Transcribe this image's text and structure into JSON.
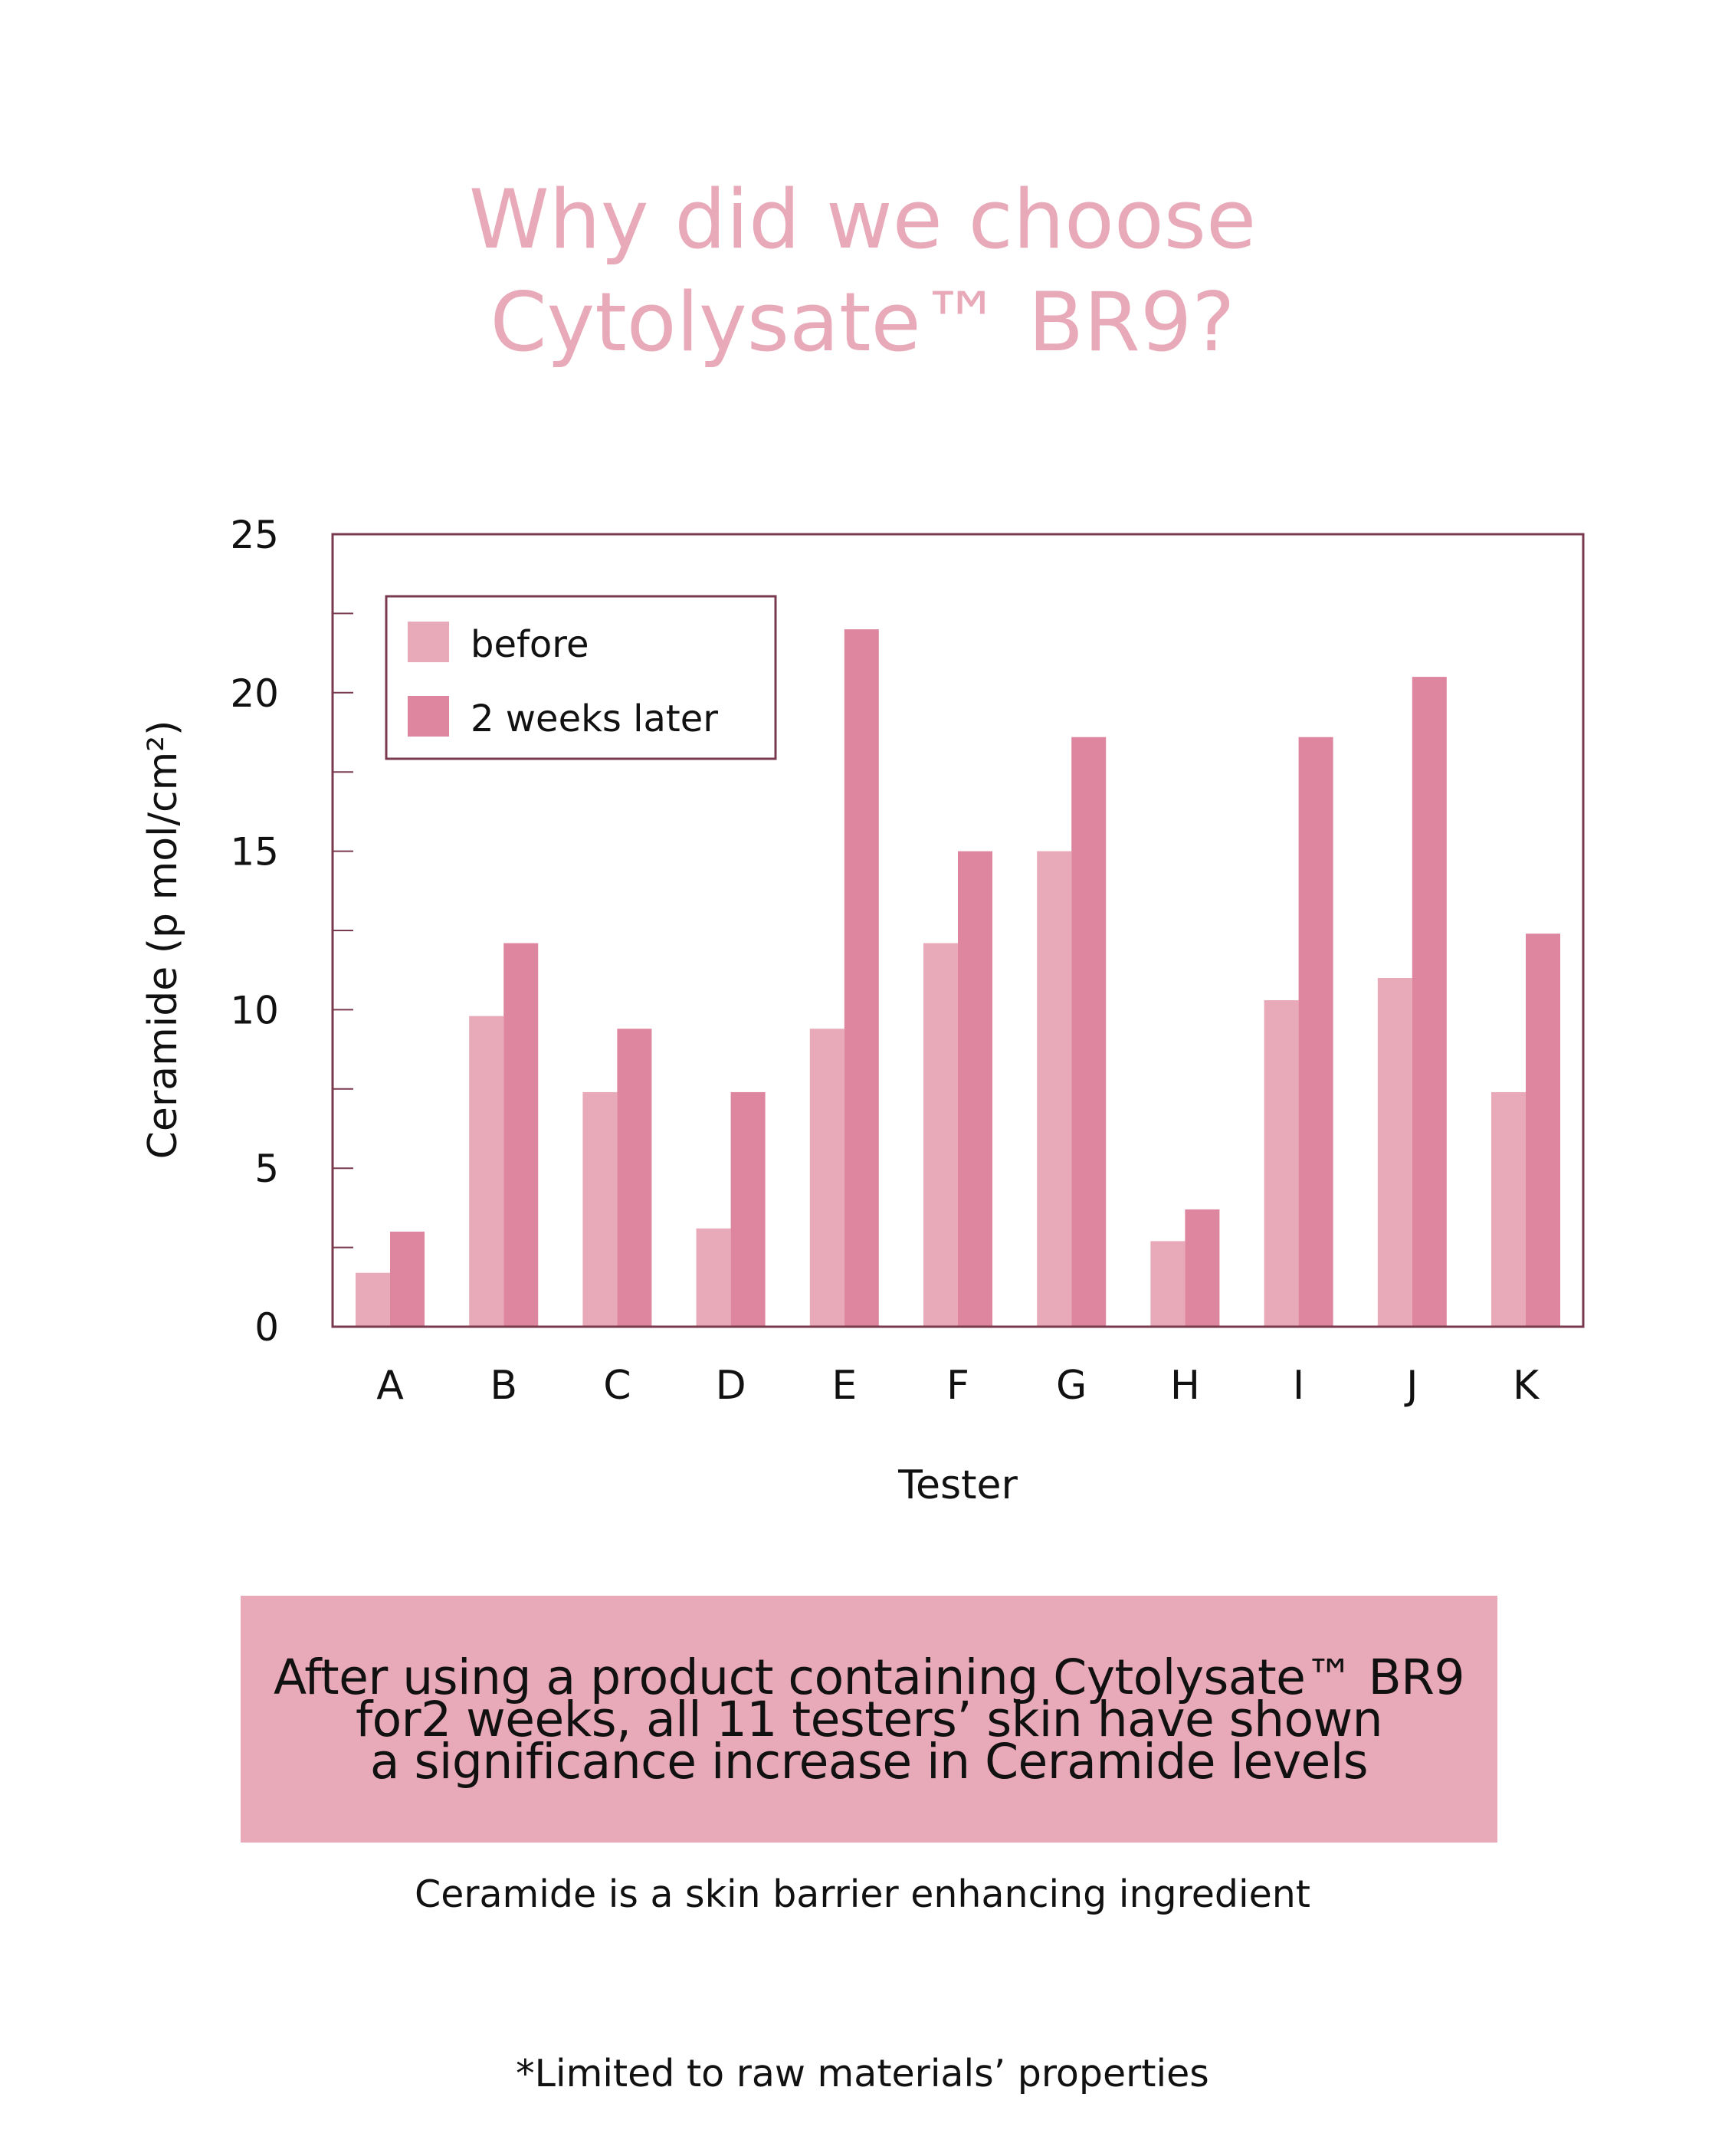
{
  "title": {
    "line1": "Why did we choose",
    "line2": "Cytolysate™ BR9?"
  },
  "callout": {
    "line1": "After using a product containing Cytolysate™ BR9",
    "line2": "for2 weeks, all 11 testers’ skin have shown",
    "line3": "a significance increase in Ceramide levels"
  },
  "subnote": "Ceramide is a skin barrier enhancing ingredient",
  "footnote": "*Limited to raw materials’ properties",
  "colors": {
    "title": "#e8a9b9",
    "before": "#e8aab9",
    "after": "#de86a0",
    "frame": "#7a3a4e",
    "callout_bg": "#e8a9b8"
  },
  "chart_data": {
    "type": "bar",
    "categories": [
      "A",
      "B",
      "C",
      "D",
      "E",
      "F",
      "G",
      "H",
      "I",
      "J",
      "K"
    ],
    "series": [
      {
        "name": "before",
        "values": [
          1.7,
          9.8,
          7.4,
          3.1,
          9.4,
          12.1,
          15.0,
          2.7,
          10.3,
          11.0,
          7.4
        ]
      },
      {
        "name": "2 weeks later",
        "values": [
          3.0,
          12.1,
          9.4,
          7.4,
          22.0,
          15.0,
          18.6,
          3.7,
          18.6,
          20.5,
          12.4
        ]
      }
    ],
    "xlabel": "Tester",
    "ylabel": "Ceramide (p mol/cm²)",
    "ylim": [
      0,
      25
    ],
    "yticks": [
      0,
      5,
      10,
      15,
      20,
      25
    ],
    "minor_ticks": [
      2.5,
      7.5,
      12.5,
      17.5,
      22.5
    ],
    "legend_position": "top-left",
    "grid": false
  }
}
